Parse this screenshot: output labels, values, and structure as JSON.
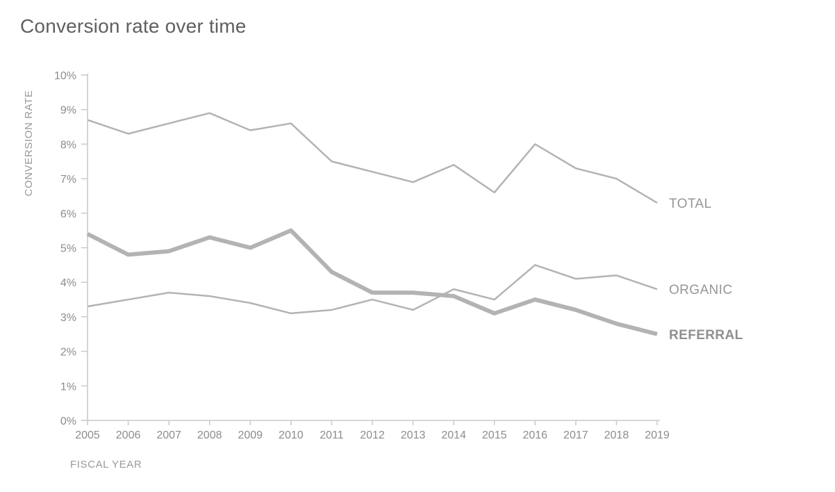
{
  "title": "Conversion rate over time",
  "chart_data": {
    "type": "line",
    "title": "Conversion rate over time",
    "xlabel": "FISCAL YEAR",
    "ylabel": "CONVERSION RATE",
    "x": [
      2005,
      2006,
      2007,
      2008,
      2009,
      2010,
      2011,
      2012,
      2013,
      2014,
      2015,
      2016,
      2017,
      2018,
      2019
    ],
    "y_ticks": [
      "0%",
      "1%",
      "2%",
      "3%",
      "4%",
      "5%",
      "6%",
      "7%",
      "8%",
      "9%",
      "10%"
    ],
    "ylim": [
      0,
      10
    ],
    "grid": false,
    "legend_position": "right-of-line-ends",
    "series": [
      {
        "name": "TOTAL",
        "values": [
          8.7,
          8.3,
          8.6,
          8.9,
          8.4,
          8.6,
          7.5,
          7.2,
          6.9,
          7.4,
          6.6,
          8.0,
          7.3,
          7.0,
          6.3
        ],
        "emphasis": false
      },
      {
        "name": "ORGANIC",
        "values": [
          3.3,
          3.5,
          3.7,
          3.6,
          3.4,
          3.1,
          3.2,
          3.5,
          3.2,
          3.8,
          3.5,
          4.5,
          4.1,
          4.2,
          3.8
        ],
        "emphasis": false
      },
      {
        "name": "REFERRAL",
        "values": [
          5.4,
          4.8,
          4.9,
          5.3,
          5.0,
          5.5,
          4.3,
          3.7,
          3.7,
          3.6,
          3.1,
          3.5,
          3.2,
          2.8,
          2.5
        ],
        "emphasis": true
      }
    ],
    "colors": {
      "line": "#b3b3b3",
      "axis": "#c9c9c9",
      "tick_text": "#8c8c8c",
      "series_label_text": "#969696",
      "title_text": "#5f5f5f"
    }
  }
}
